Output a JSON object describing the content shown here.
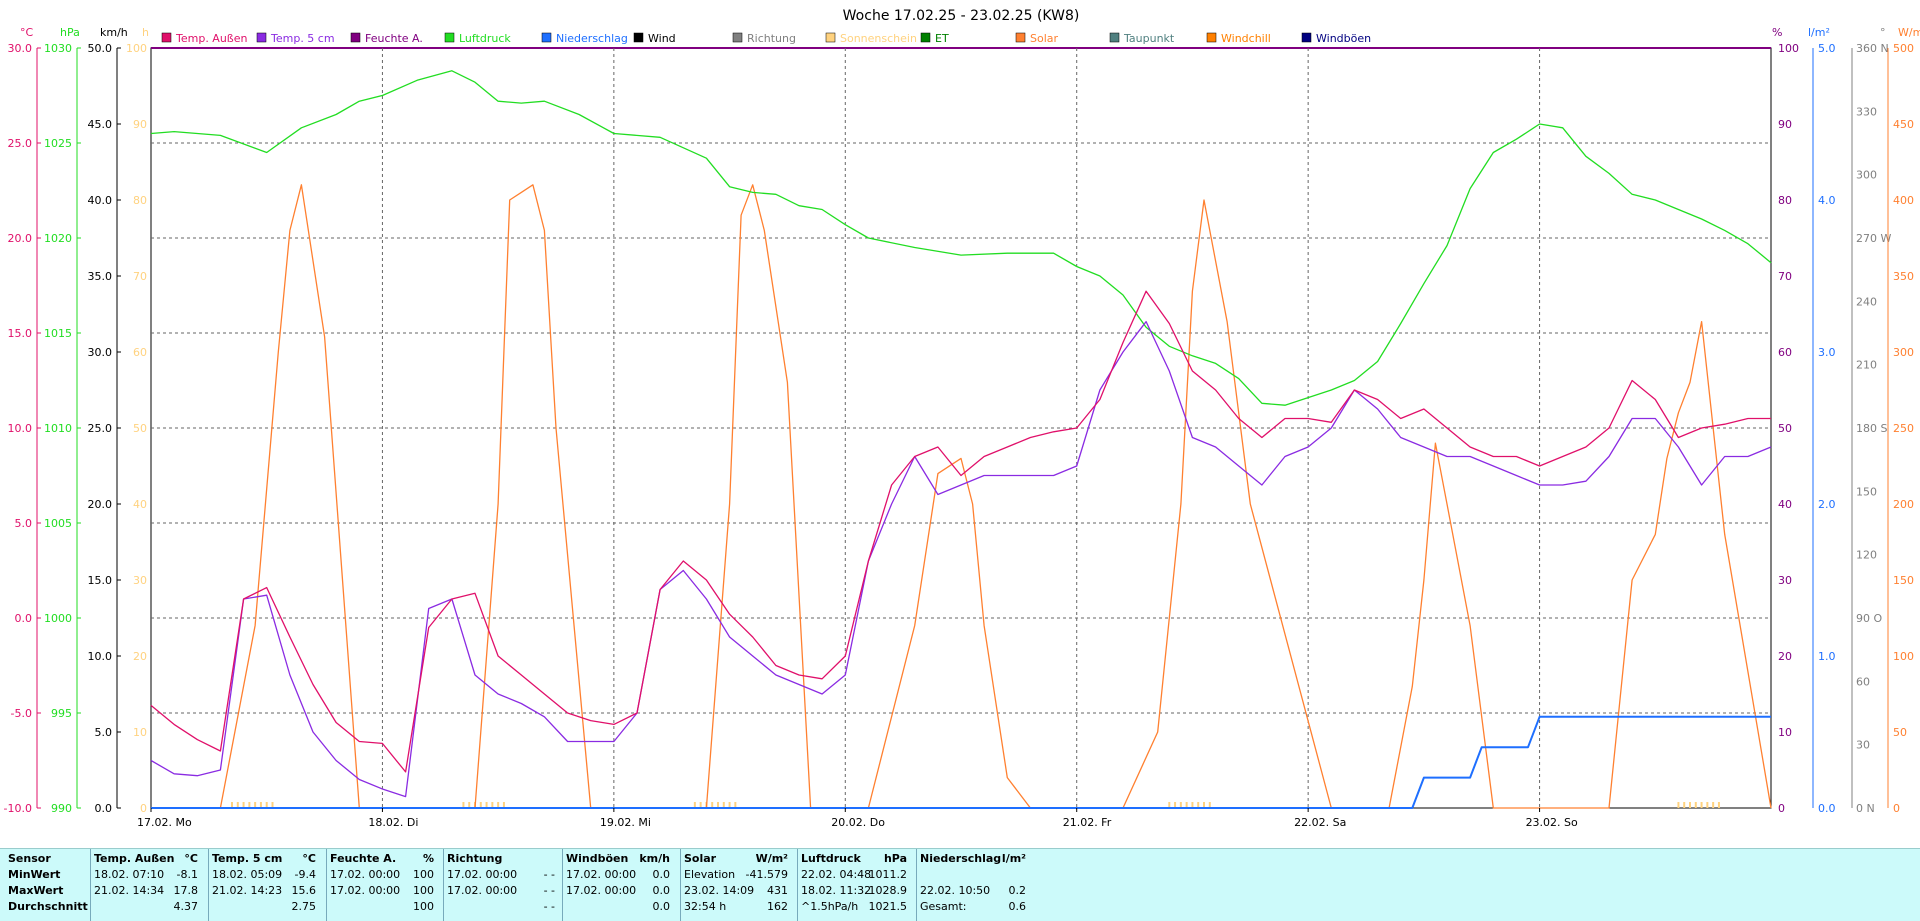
{
  "chart_data": {
    "type": "line",
    "title": "Woche 17.02.25 - 23.02.25 (KW8)",
    "legend": [
      {
        "name": "Temp. Außen",
        "color": "#e0106a"
      },
      {
        "name": "Temp. 5 cm",
        "color": "#8a2be2"
      },
      {
        "name": "Feuchte A.",
        "color": "#800080"
      },
      {
        "name": "Luftdruck",
        "color": "#22dd22"
      },
      {
        "name": "Niederschlag",
        "color": "#1e6fff"
      },
      {
        "name": "Wind",
        "color": "#000000"
      },
      {
        "name": "Richtung",
        "color": "#808080"
      },
      {
        "name": "Sonnenschein",
        "color": "#ffd27f"
      },
      {
        "name": "ET",
        "color": "#008000"
      },
      {
        "name": "Solar",
        "color": "#ff8030"
      },
      {
        "name": "Taupunkt",
        "color": "#508080"
      },
      {
        "name": "Windchill",
        "color": "#ff8000"
      },
      {
        "name": "Windböen",
        "color": "#000080"
      }
    ],
    "legend_placement": "top",
    "grid": true,
    "x_labels": [
      "17.02. Mo",
      "18.02. Di",
      "19.02. Mi",
      "20.02. Do",
      "21.02. Fr",
      "22.02. Sa",
      "23.02. So"
    ],
    "x_range": [
      0,
      7
    ],
    "left_axes": [
      {
        "unit": "°C",
        "color": "#e0106a",
        "ticks": [
          "30.0",
          "25.0",
          "20.0",
          "15.0",
          "10.0",
          "5.0",
          "0.0",
          "-5.0",
          "-10.0"
        ],
        "range": [
          -10,
          30
        ]
      },
      {
        "unit": "hPa",
        "color": "#22dd22",
        "ticks": [
          "1030",
          "1025",
          "1020",
          "1015",
          "1010",
          "1005",
          "1000",
          "995",
          "990"
        ],
        "range": [
          990,
          1030
        ]
      },
      {
        "unit": "km/h",
        "color": "#000000",
        "ticks": [
          "50.0",
          "45.0",
          "40.0",
          "35.0",
          "30.0",
          "25.0",
          "20.0",
          "15.0",
          "10.0",
          "5.0",
          "0.0"
        ],
        "range": [
          0,
          50
        ]
      },
      {
        "unit": "h",
        "color": "#ffd27f",
        "ticks": [
          "100",
          "90",
          "80",
          "70",
          "60",
          "50",
          "40",
          "30",
          "20",
          "10",
          "0"
        ],
        "range": [
          0,
          100
        ]
      }
    ],
    "right_axes": [
      {
        "unit": "%",
        "color": "#800080",
        "ticks": [
          "100",
          "90",
          "80",
          "70",
          "60",
          "50",
          "40",
          "30",
          "20",
          "10",
          "0"
        ],
        "range": [
          0,
          100
        ]
      },
      {
        "unit": "l/m²",
        "color": "#1e6fff",
        "ticks": [
          "5.0",
          "4.0",
          "3.0",
          "2.0",
          "1.0",
          "0.0"
        ],
        "range": [
          0,
          5
        ]
      },
      {
        "unit": "°",
        "color": "#808080",
        "ticks": [
          "360 N",
          "330",
          "300",
          "270 W",
          "240",
          "210",
          "180 S",
          "150",
          "120",
          "90 O",
          "60",
          "30",
          "0 N"
        ],
        "range": [
          0,
          360
        ]
      },
      {
        "unit": "W/m²",
        "color": "#ff8030",
        "ticks": [
          "500",
          "450",
          "400",
          "350",
          "300",
          "250",
          "200",
          "150",
          "100",
          "50",
          "0"
        ],
        "range": [
          0,
          500
        ]
      }
    ],
    "series": [
      {
        "name": "Luftdruck",
        "axis": "hPa",
        "x": [
          0,
          0.1,
          0.3,
          0.5,
          0.65,
          0.8,
          0.9,
          1.0,
          1.15,
          1.3,
          1.4,
          1.5,
          1.6,
          1.7,
          1.85,
          2.0,
          2.2,
          2.4,
          2.5,
          2.6,
          2.7,
          2.8,
          2.9,
          3.0,
          3.1,
          3.3,
          3.5,
          3.7,
          3.8,
          3.9,
          4.0,
          4.1,
          4.2,
          4.3,
          4.4,
          4.5,
          4.6,
          4.7,
          4.8,
          4.9,
          5.0,
          5.1,
          5.2,
          5.3,
          5.4,
          5.5,
          5.6,
          5.7,
          5.8,
          5.9,
          6.0,
          6.1,
          6.2,
          6.3,
          6.4,
          6.5,
          6.6,
          6.7,
          6.8,
          6.9,
          7.0
        ],
        "values": [
          1025.5,
          1025.6,
          1025.4,
          1024.5,
          1025.8,
          1026.5,
          1027.2,
          1027.5,
          1028.3,
          1028.8,
          1028.2,
          1027.2,
          1027.1,
          1027.2,
          1026.5,
          1025.5,
          1025.3,
          1024.2,
          1022.7,
          1022.4,
          1022.3,
          1021.7,
          1021.5,
          1020.7,
          1020.0,
          1019.5,
          1019.1,
          1019.2,
          1019.2,
          1019.2,
          1018.5,
          1018.0,
          1017.0,
          1015.3,
          1014.3,
          1013.8,
          1013.4,
          1012.6,
          1011.3,
          1011.2,
          1011.6,
          1012.0,
          1012.5,
          1013.5,
          1015.5,
          1017.6,
          1019.6,
          1022.6,
          1024.5,
          1025.2,
          1026.0,
          1025.8,
          1024.3,
          1023.4,
          1022.3,
          1022.0,
          1021.5,
          1021.0,
          1020.4,
          1019.7,
          1018.7
        ]
      },
      {
        "name": "Temp. Außen",
        "axis": "°C",
        "x": [
          0,
          0.1,
          0.2,
          0.3,
          0.4,
          0.5,
          0.6,
          0.7,
          0.8,
          0.9,
          1.0,
          1.1,
          1.2,
          1.3,
          1.4,
          1.5,
          1.6,
          1.7,
          1.8,
          1.9,
          2.0,
          2.1,
          2.2,
          2.3,
          2.4,
          2.5,
          2.6,
          2.7,
          2.8,
          2.9,
          3.0,
          3.1,
          3.2,
          3.3,
          3.4,
          3.5,
          3.6,
          3.7,
          3.8,
          3.9,
          4.0,
          4.1,
          4.2,
          4.3,
          4.4,
          4.5,
          4.6,
          4.7,
          4.8,
          4.9,
          5.0,
          5.1,
          5.2,
          5.3,
          5.4,
          5.5,
          5.6,
          5.7,
          5.8,
          5.9,
          6.0,
          6.1,
          6.2,
          6.3,
          6.4,
          6.5,
          6.6,
          6.7,
          6.8,
          6.9,
          7.0
        ],
        "values": [
          -4.6,
          -5.6,
          -6.4,
          -7.0,
          1.0,
          1.6,
          -1.0,
          -3.5,
          -5.5,
          -6.5,
          -6.6,
          -8.1,
          -0.5,
          1.0,
          1.3,
          -2.0,
          -3.0,
          -4.0,
          -5.0,
          -5.4,
          -5.6,
          -5.0,
          1.5,
          3.0,
          2.0,
          0.2,
          -1.0,
          -2.5,
          -3.0,
          -3.2,
          -2.0,
          3.0,
          7.0,
          8.5,
          9.0,
          7.5,
          8.5,
          9.0,
          9.5,
          9.8,
          10.0,
          11.5,
          14.5,
          17.2,
          15.5,
          13.0,
          12.0,
          10.5,
          9.5,
          10.5,
          10.5,
          10.3,
          12.0,
          11.5,
          10.5,
          11.0,
          10.0,
          9.0,
          8.5,
          8.5,
          8.0,
          8.5,
          9.0,
          10.0,
          12.5,
          11.5,
          9.5,
          10.0,
          10.2,
          10.5,
          10.5
        ]
      },
      {
        "name": "Temp. 5 cm",
        "axis": "°C",
        "x": [
          0,
          0.1,
          0.2,
          0.3,
          0.4,
          0.5,
          0.6,
          0.7,
          0.8,
          0.9,
          1.0,
          1.1,
          1.2,
          1.3,
          1.4,
          1.5,
          1.6,
          1.7,
          1.8,
          1.9,
          2.0,
          2.1,
          2.2,
          2.3,
          2.4,
          2.5,
          2.6,
          2.7,
          2.8,
          2.9,
          3.0,
          3.1,
          3.2,
          3.3,
          3.4,
          3.5,
          3.6,
          3.7,
          3.8,
          3.9,
          4.0,
          4.1,
          4.2,
          4.3,
          4.4,
          4.5,
          4.6,
          4.7,
          4.8,
          4.9,
          5.0,
          5.1,
          5.2,
          5.3,
          5.4,
          5.5,
          5.6,
          5.7,
          5.8,
          5.9,
          6.0,
          6.1,
          6.2,
          6.3,
          6.4,
          6.5,
          6.6,
          6.7,
          6.8,
          6.9,
          7.0
        ],
        "values": [
          -7.5,
          -8.2,
          -8.3,
          -8.0,
          1.0,
          1.2,
          -3.0,
          -6.0,
          -7.5,
          -8.5,
          -9.0,
          -9.4,
          0.5,
          1.0,
          -3.0,
          -4.0,
          -4.5,
          -5.2,
          -6.5,
          -6.5,
          -6.5,
          -5.0,
          1.5,
          2.5,
          1.0,
          -1.0,
          -2.0,
          -3.0,
          -3.5,
          -4.0,
          -3.0,
          3.0,
          6.0,
          8.5,
          6.5,
          7.0,
          7.5,
          7.5,
          7.5,
          7.5,
          8.0,
          12.0,
          14.0,
          15.6,
          13.0,
          9.5,
          9.0,
          8.0,
          7.0,
          8.5,
          9.0,
          10.0,
          12.0,
          11.0,
          9.5,
          9.0,
          8.5,
          8.5,
          8.0,
          7.5,
          7.0,
          7.0,
          7.2,
          8.5,
          10.5,
          10.5,
          9.0,
          7.0,
          8.5,
          8.5,
          9.0
        ]
      },
      {
        "name": "Solar",
        "axis": "W/m²",
        "x": [
          0,
          0.3,
          0.45,
          0.55,
          0.6,
          0.65,
          0.75,
          0.9,
          1.1,
          1.4,
          1.5,
          1.55,
          1.6,
          1.65,
          1.7,
          1.75,
          1.9,
          2.1,
          2.4,
          2.5,
          2.55,
          2.6,
          2.65,
          2.75,
          2.85,
          3.1,
          3.3,
          3.4,
          3.5,
          3.55,
          3.6,
          3.7,
          3.8,
          3.9,
          4.2,
          4.35,
          4.45,
          4.5,
          4.55,
          4.65,
          4.75,
          5.1,
          5.35,
          5.45,
          5.5,
          5.55,
          5.6,
          5.7,
          5.8,
          6.1,
          6.3,
          6.4,
          6.5,
          6.55,
          6.6,
          6.65,
          6.7,
          6.8,
          7.0
        ],
        "values": [
          0,
          0,
          120,
          300,
          380,
          410,
          310,
          0,
          0,
          0,
          200,
          400,
          405,
          410,
          380,
          250,
          0,
          0,
          0,
          200,
          390,
          410,
          380,
          280,
          0,
          0,
          120,
          220,
          230,
          200,
          120,
          20,
          0,
          0,
          0,
          50,
          200,
          340,
          400,
          320,
          200,
          0,
          0,
          80,
          150,
          240,
          200,
          120,
          0,
          0,
          0,
          150,
          180,
          230,
          260,
          280,
          320,
          180,
          0
        ]
      },
      {
        "name": "Niederschlag",
        "axis": "l/m²",
        "x": [
          0,
          5.45,
          5.5,
          5.7,
          5.75,
          5.95,
          6.0,
          6.3,
          7.0
        ],
        "values": [
          0,
          0,
          0.2,
          0.2,
          0.4,
          0.4,
          0.6,
          0.6,
          0.6
        ]
      }
    ],
    "stats_table": {
      "sensor": {
        "header": "Sensor",
        "rows": [
          "MinWert",
          "MaxWert",
          "Durchschnitt"
        ]
      },
      "temp_aussen": {
        "header": "Temp. Außen",
        "unit": "°C",
        "rows": [
          [
            "18.02.  07:10",
            "-8.1"
          ],
          [
            "21.02.  14:34",
            "17.8"
          ],
          [
            "",
            "4.37"
          ]
        ]
      },
      "temp_5cm": {
        "header": "Temp. 5 cm",
        "unit": "°C",
        "rows": [
          [
            "18.02.  05:09",
            "-9.4"
          ],
          [
            "21.02.  14:23",
            "15.6"
          ],
          [
            "",
            "2.75"
          ]
        ]
      },
      "feuchte": {
        "header": "Feuchte A.",
        "unit": "%",
        "rows": [
          [
            "17.02.  00:00",
            "100"
          ],
          [
            "17.02.  00:00",
            "100"
          ],
          [
            "",
            "100"
          ]
        ]
      },
      "richtung": {
        "header": "Richtung",
        "unit": "",
        "rows": [
          [
            "17.02.  00:00",
            "- -"
          ],
          [
            "17.02.  00:00",
            "- -"
          ],
          [
            "",
            "- -"
          ]
        ]
      },
      "windboen": {
        "header": "Windböen",
        "unit": "km/h",
        "rows": [
          [
            "17.02.  00:00",
            "0.0"
          ],
          [
            "17.02.  00:00",
            "0.0"
          ],
          [
            "",
            "0.0"
          ]
        ]
      },
      "solar": {
        "header": "Solar",
        "unit": "W/m²",
        "rows": [
          [
            "Elevation",
            "-41.579"
          ],
          [
            "23.02.  14:09",
            "431"
          ],
          [
            "32:54 h",
            "162"
          ]
        ]
      },
      "luftdruck": {
        "header": "Luftdruck",
        "unit": "hPa",
        "rows": [
          [
            "22.02.  04:48",
            "1011.2"
          ],
          [
            "18.02.  11:32",
            "1028.9"
          ],
          [
            "^1.5hPa/h",
            "1021.5"
          ]
        ]
      },
      "niederschlag": {
        "header": "Niederschlag",
        "unit": "l/m²",
        "rows": [
          [
            "",
            ""
          ],
          [
            "22.02.  10:50",
            "0.2"
          ],
          [
            "Gesamt:",
            "0.6"
          ]
        ]
      }
    }
  }
}
